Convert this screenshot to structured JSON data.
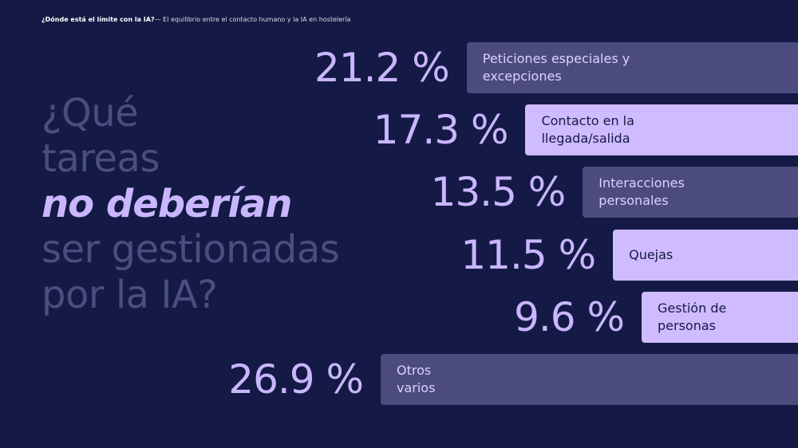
{
  "header": {
    "strong": "¿Dónde está el límite con la IA?",
    "rest": "— El equilibrio entre el contacto humano y la IA en hostelería"
  },
  "question": {
    "line1": "¿Qué",
    "line2": "tareas",
    "line3": "no deberían",
    "line4": "ser gestionadas",
    "line5": "por la IA?"
  },
  "colors": {
    "background": "#141a45",
    "bar_dark": "#4c4b7e",
    "bar_light": "#cfbbff",
    "label_on_dark": "#dcd2ff",
    "label_on_light": "#141a45",
    "accent": "#c9b6ff",
    "muted_text": "#4a4e7e"
  },
  "chart_data": {
    "type": "bar",
    "orientation": "horizontal",
    "unit": "%",
    "categories": [
      "Peticiones especiales y excepciones",
      "Contacto en la llegada/salida",
      "Interacciones personales",
      "Quejas",
      "Gestión de personas",
      "Otros varios"
    ],
    "label_lines": [
      "Peticiones especiales y\nexcepciones",
      "Contacto en la\nllegada/salida",
      "Interacciones\npersonales",
      "Quejas",
      "Gestión de\npersonas",
      "Otros\nvarios"
    ],
    "values": [
      21.2,
      17.3,
      13.5,
      11.5,
      9.6,
      26.9
    ],
    "value_labels": [
      "21.2 %",
      "17.3 %",
      "13.5 %",
      "11.5 %",
      "9.6 %",
      "26.9 %"
    ],
    "bar_styles": [
      "dark",
      "light",
      "dark",
      "light",
      "light",
      "dark"
    ]
  }
}
